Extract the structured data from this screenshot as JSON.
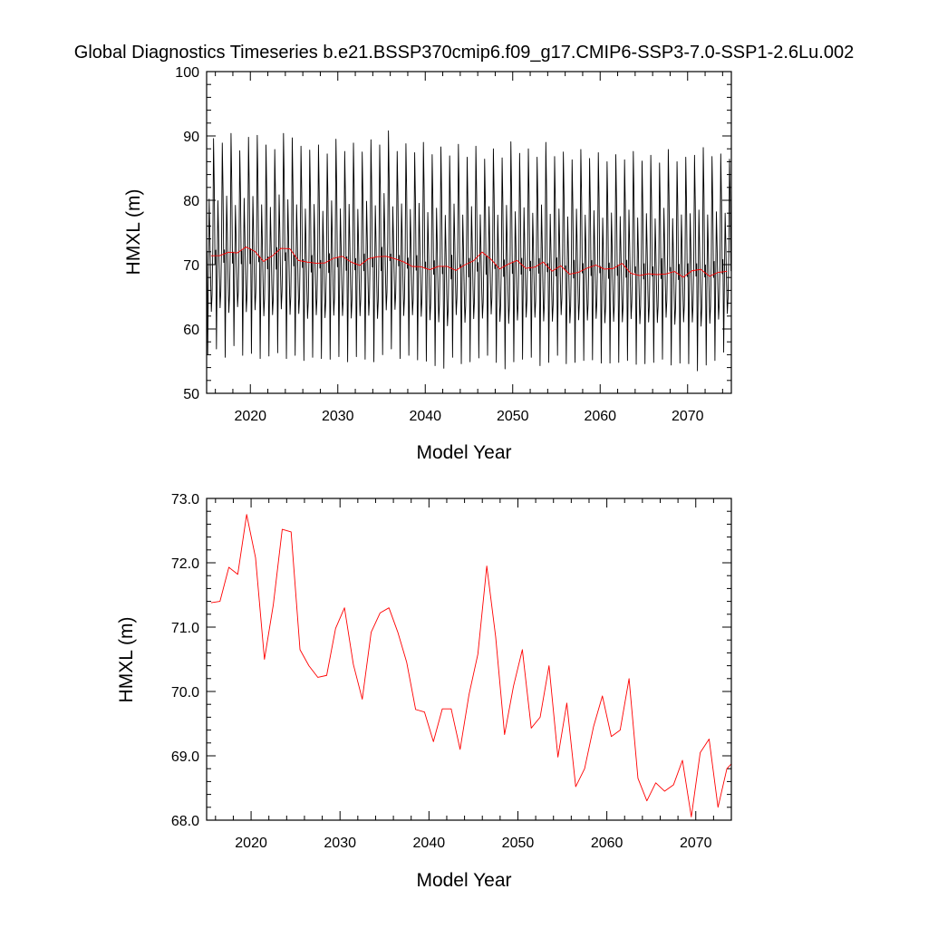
{
  "figure": {
    "title": "Global Diagnostics Timeseries b.e21.BSSP370cmip6.f09_g17.CMIP6-SSP3-7.0-SSP1-2.6Lu.002"
  },
  "colors": {
    "monthly": "#000000",
    "annual": "#ff0000",
    "axes": "#000000",
    "background": "#ffffff"
  },
  "chart_data": [
    {
      "type": "line",
      "title": "Global Diagnostics Timeseries b.e21.BSSP370cmip6.f09_g17.CMIP6-SSP3-7.0-SSP1-2.6Lu.002",
      "xlabel": "Model Year",
      "ylabel": "HMXL (m)",
      "xlim": [
        2015,
        2075
      ],
      "ylim": [
        50,
        100
      ],
      "x_ticks": [
        2020,
        2030,
        2040,
        2050,
        2060,
        2070
      ],
      "y_ticks": [
        50,
        60,
        70,
        80,
        90,
        100
      ],
      "y_tick_labels": [
        "50",
        "60",
        "70",
        "80",
        "90",
        "100"
      ],
      "grid": false,
      "series": [
        {
          "style": "monthly",
          "x_start": 2015.04,
          "x_step": 0.0833333,
          "annual_max": [
            89.6,
            88.9,
            90.4,
            87.7,
            89.8,
            90.1,
            88.6,
            87.9,
            90.4,
            89.7,
            88.4,
            87.8,
            88.6,
            87.2,
            89.5,
            87.6,
            88.9,
            87.5,
            89.4,
            88.6,
            90.8,
            87.6,
            88.8,
            87.4,
            89.0,
            87.1,
            88.3,
            86.9,
            88.7,
            86.7,
            88.4,
            86.4,
            88.0,
            86.6,
            89.1,
            87.3,
            88.0,
            86.7,
            89.0,
            86.8,
            87.5,
            86.3,
            87.9,
            86.5,
            87.4,
            86.0,
            87.1,
            86.3,
            87.6,
            86.1,
            87.0,
            85.8,
            87.9,
            86.0,
            86.7,
            87.0,
            88.2,
            86.8,
            87.2,
            86.4
          ],
          "annual_min": [
            56.0,
            56.9,
            55.6,
            57.4,
            55.9,
            56.2,
            55.4,
            55.8,
            56.3,
            55.4,
            55.9,
            55.1,
            55.6,
            55.4,
            55.3,
            55.7,
            54.9,
            55.7,
            55.3,
            54.9,
            56.0,
            56.9,
            55.4,
            55.9,
            55.2,
            55.0,
            54.3,
            53.9,
            55.6,
            54.6,
            54.9,
            55.5,
            55.9,
            54.8,
            53.8,
            54.9,
            55.3,
            55.6,
            54.3,
            54.8,
            55.9,
            54.6,
            54.8,
            55.1,
            55.2,
            54.7,
            54.7,
            54.8,
            55.1,
            54.5,
            54.6,
            54.8,
            55.3,
            54.4,
            54.7,
            54.6,
            53.5,
            54.4,
            55.1,
            56.4
          ]
        },
        {
          "style": "annual",
          "x": [
            2015.5,
            2016.5,
            2017.5,
            2018.5,
            2019.5,
            2020.5,
            2021.5,
            2022.5,
            2023.5,
            2024.5,
            2025.5,
            2026.5,
            2027.5,
            2028.5,
            2029.5,
            2030.5,
            2031.5,
            2032.5,
            2033.5,
            2034.5,
            2035.5,
            2036.5,
            2037.5,
            2038.5,
            2039.5,
            2040.5,
            2041.5,
            2042.5,
            2043.5,
            2044.5,
            2045.5,
            2046.5,
            2047.5,
            2048.5,
            2049.5,
            2050.5,
            2051.5,
            2052.5,
            2053.5,
            2054.5,
            2055.5,
            2056.5,
            2057.5,
            2058.5,
            2059.5,
            2060.5,
            2061.5,
            2062.5,
            2063.5,
            2064.5,
            2065.5,
            2066.5,
            2067.5,
            2068.5,
            2069.5,
            2070.5,
            2071.5,
            2072.5,
            2073.5,
            2074.5
          ],
          "values": [
            71.38,
            71.4,
            71.93,
            71.82,
            72.75,
            72.08,
            70.5,
            71.35,
            72.52,
            72.48,
            70.65,
            70.4,
            70.22,
            70.25,
            70.98,
            71.3,
            70.42,
            69.88,
            70.92,
            71.22,
            71.3,
            70.92,
            70.45,
            69.72,
            69.68,
            69.22,
            69.73,
            69.73,
            69.1,
            69.95,
            70.58,
            71.95,
            70.85,
            69.33,
            70.08,
            70.65,
            69.43,
            69.6,
            70.4,
            68.98,
            69.82,
            68.52,
            68.8,
            69.45,
            69.93,
            69.3,
            69.4,
            70.2,
            68.65,
            68.3,
            68.58,
            68.45,
            68.55,
            68.93,
            68.05,
            69.05,
            69.26,
            68.2,
            68.8,
            68.95
          ]
        }
      ]
    },
    {
      "type": "line",
      "xlabel": "Model Year",
      "ylabel": "HMXL (m)",
      "xlim": [
        2015,
        2074
      ],
      "ylim": [
        68.0,
        73.0
      ],
      "x_ticks": [
        2020,
        2030,
        2040,
        2050,
        2060,
        2070
      ],
      "y_ticks": [
        68.0,
        69.0,
        70.0,
        71.0,
        72.0,
        73.0
      ],
      "y_tick_labels": [
        "68.0",
        "69.0",
        "70.0",
        "71.0",
        "72.0",
        "73.0"
      ],
      "grid": false,
      "series": [
        {
          "style": "annual",
          "x": [
            2015.5,
            2016.5,
            2017.5,
            2018.5,
            2019.5,
            2020.5,
            2021.5,
            2022.5,
            2023.5,
            2024.5,
            2025.5,
            2026.5,
            2027.5,
            2028.5,
            2029.5,
            2030.5,
            2031.5,
            2032.5,
            2033.5,
            2034.5,
            2035.5,
            2036.5,
            2037.5,
            2038.5,
            2039.5,
            2040.5,
            2041.5,
            2042.5,
            2043.5,
            2044.5,
            2045.5,
            2046.5,
            2047.5,
            2048.5,
            2049.5,
            2050.5,
            2051.5,
            2052.5,
            2053.5,
            2054.5,
            2055.5,
            2056.5,
            2057.5,
            2058.5,
            2059.5,
            2060.5,
            2061.5,
            2062.5,
            2063.5,
            2064.5,
            2065.5,
            2066.5,
            2067.5,
            2068.5,
            2069.5,
            2070.5,
            2071.5,
            2072.5,
            2073.5,
            2074.5
          ],
          "values": [
            71.38,
            71.4,
            71.93,
            71.82,
            72.75,
            72.08,
            70.5,
            71.35,
            72.52,
            72.48,
            70.65,
            70.4,
            70.22,
            70.25,
            70.98,
            71.3,
            70.42,
            69.88,
            70.92,
            71.22,
            71.3,
            70.92,
            70.45,
            69.72,
            69.68,
            69.22,
            69.73,
            69.73,
            69.1,
            69.95,
            70.58,
            71.95,
            70.85,
            69.33,
            70.08,
            70.65,
            69.43,
            69.6,
            70.4,
            68.98,
            69.82,
            68.52,
            68.8,
            69.45,
            69.93,
            69.3,
            69.4,
            70.2,
            68.65,
            68.3,
            68.58,
            68.45,
            68.55,
            68.93,
            68.05,
            69.05,
            69.26,
            68.2,
            68.8,
            68.95
          ]
        }
      ]
    }
  ]
}
